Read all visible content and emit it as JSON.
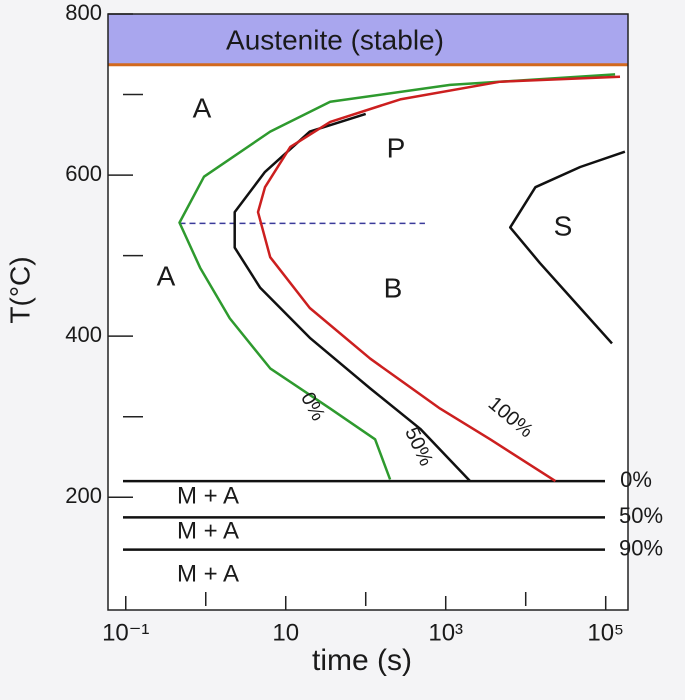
{
  "chart_data": {
    "type": "ttt",
    "xlabel": "time (s)",
    "ylabel": "T(°C)",
    "log_x": true,
    "xlim": [
      0.06,
      190000
    ],
    "ylim": [
      60,
      800
    ],
    "xticks": [
      {
        "value": 0.1,
        "label": "10⁻¹"
      },
      10,
      {
        "value": 1000,
        "label": "10³"
      },
      {
        "value": 100000,
        "label": "10⁵"
      }
    ],
    "minor_xticks": [
      1,
      100,
      10000
    ],
    "yticks": [
      200,
      400,
      600,
      800
    ],
    "minor_yticks": [
      300,
      500,
      700
    ],
    "austenite": {
      "label": "Austenite (stable)",
      "lower": 737,
      "color": "#a9a6ee",
      "line_color": "#d2691e"
    },
    "series": [
      {
        "name": "0%",
        "color": "#2e9a2e",
        "x": [
          131000,
          1135,
          36,
          6.4,
          0.95,
          0.47,
          0.85,
          2.0,
          6.4,
          36,
          131,
          202
        ],
        "values": [
          725,
          712,
          691,
          654,
          598,
          541,
          485,
          422,
          360,
          310,
          272,
          222
        ]
      },
      {
        "name": "50%",
        "color": "#111111",
        "x": [
          100,
          20,
          5.5,
          2.3,
          2.3,
          4.8,
          20,
          114,
          480,
          2020
        ],
        "values": [
          676,
          654,
          604,
          554,
          510,
          460,
          398,
          335,
          285,
          220
        ]
      },
      {
        "name": "100%",
        "color": "#cc1f1f",
        "x": [
          151000,
          4800,
          270,
          36,
          11.4,
          5.5,
          4.5,
          6.4,
          20,
          114,
          850,
          3600,
          23500
        ],
        "values": [
          722,
          716,
          694,
          666,
          635,
          585,
          554,
          498,
          435,
          372,
          310,
          272,
          220
        ]
      },
      {
        "color": "#111111",
        "x": [
          174000,
          48000,
          13200,
          6400,
          15000,
          48000,
          120000
        ],
        "values": [
          629,
          610,
          585,
          535,
          491,
          435,
          391
        ]
      }
    ],
    "dashed_line": {
      "x": [
        0.47,
        550
      ],
      "y": 540,
      "color": "#3a3a9a"
    },
    "ms_lines": [
      {
        "label": "0%",
        "value": 220
      },
      {
        "label": "50%",
        "value": 175
      },
      {
        "label": "90%",
        "value": 135
      }
    ],
    "annotations": [
      "A",
      "P",
      "A",
      "B",
      "S",
      "M + A",
      "M + A",
      "M + A"
    ]
  }
}
